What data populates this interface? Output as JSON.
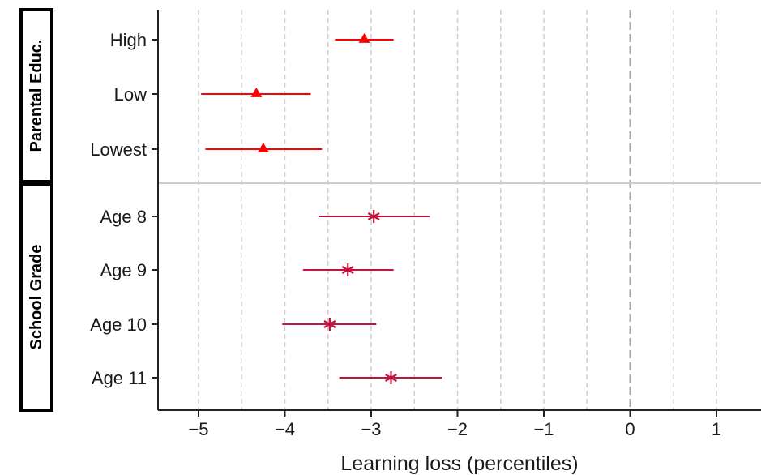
{
  "chart_data": {
    "type": "scatter",
    "subtype": "coefficient-plot-with-error-bars",
    "title": "",
    "xlabel": "Learning loss (percentiles)",
    "ylabel": "",
    "xlim": [
      -5.5,
      1.5
    ],
    "xticks": [
      -5,
      -4,
      -3,
      -2,
      -1,
      0,
      1
    ],
    "xtick_labels": [
      "−5",
      "−4",
      "−3",
      "−2",
      "−1",
      "0",
      "1"
    ],
    "vertical_grid_at": [
      -5,
      -4.5,
      -4,
      -3.5,
      -3,
      -2.5,
      -2,
      -1.5,
      -1,
      -0.5,
      0.5,
      1
    ],
    "reference_line_x": 0,
    "grid": true,
    "panels": [
      {
        "label": "Parental Educ.",
        "marker": "triangle",
        "color": "#ff0000",
        "categories": [
          "High",
          "Low",
          "Lowest"
        ],
        "estimates": [
          -3.08,
          -4.33,
          -4.25
        ],
        "ci_low": [
          -3.42,
          -4.97,
          -4.92
        ],
        "ci_high": [
          -2.74,
          -3.7,
          -3.57
        ]
      },
      {
        "label": "School Grade",
        "marker": "asterisk",
        "color": "#c0143c",
        "categories": [
          "Age 8",
          "Age 9",
          "Age 10",
          "Age 11"
        ],
        "estimates": [
          -2.97,
          -3.27,
          -3.48,
          -2.77
        ],
        "ci_low": [
          -3.61,
          -3.79,
          -4.03,
          -3.37
        ],
        "ci_high": [
          -2.32,
          -2.74,
          -2.94,
          -2.18
        ]
      }
    ]
  }
}
